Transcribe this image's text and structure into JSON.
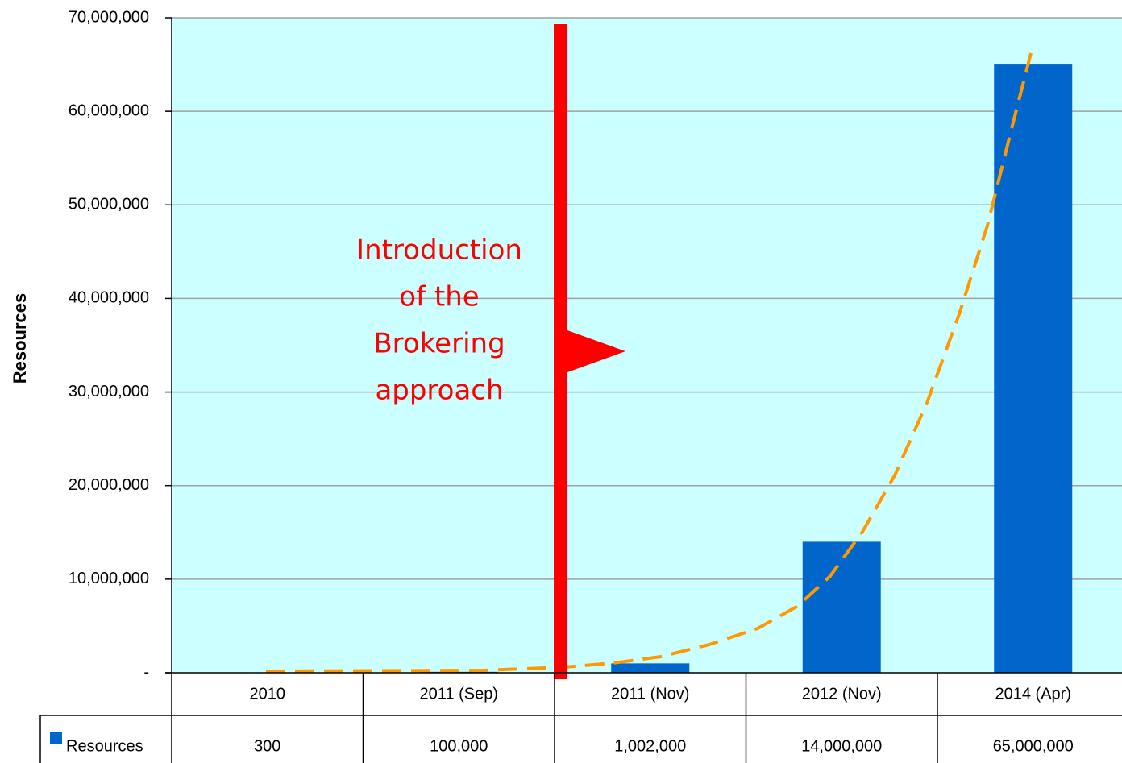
{
  "chart_data": {
    "type": "bar",
    "y_label": "Resources",
    "annotation": [
      "Introduction",
      "of the",
      "Brokering",
      "approach"
    ],
    "categories": [
      "2010",
      "2011 (Sep)",
      "2011 (Nov)",
      "2012 (Nov)",
      "2014 (Apr)"
    ],
    "series": [
      {
        "name": "Resources",
        "color": "#0066cc",
        "values": [
          300,
          100000,
          1002000,
          14000000,
          65000000
        ],
        "value_labels": [
          "300",
          "100,000",
          "1,002,000",
          "14,000,000",
          "65,000,000"
        ]
      }
    ],
    "ylim": [
      0,
      70000000
    ],
    "yticks": [
      {
        "value": 0,
        "label": "-"
      },
      {
        "value": 10000000,
        "label": "10,000,000"
      },
      {
        "value": 20000000,
        "label": "20,000,000"
      },
      {
        "value": 30000000,
        "label": "30,000,000"
      },
      {
        "value": 40000000,
        "label": "40,000,000"
      },
      {
        "value": 50000000,
        "label": "50,000,000"
      },
      {
        "value": 60000000,
        "label": "60,000,000"
      },
      {
        "value": 70000000,
        "label": "70,000,000"
      }
    ],
    "grid": true
  }
}
